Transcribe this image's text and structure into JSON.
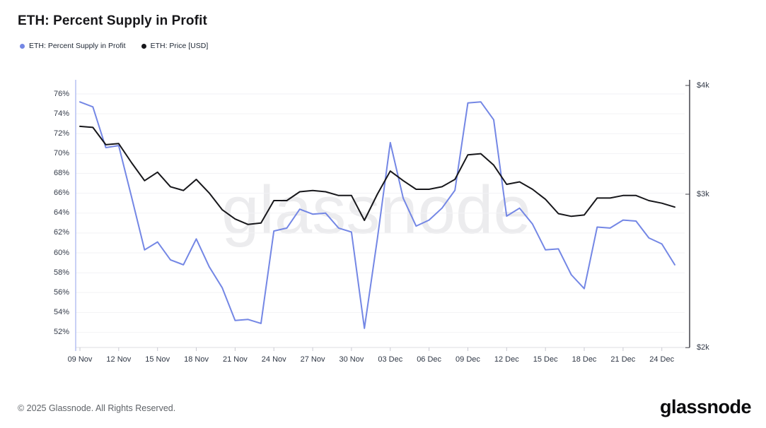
{
  "title": "ETH: Percent Supply in Profit",
  "legend": {
    "items": [
      {
        "label": "ETH: Percent Supply in Profit",
        "color": "#7487e5"
      },
      {
        "label": "ETH: Price [USD]",
        "color": "#17171b"
      }
    ]
  },
  "watermark": "glassnode",
  "footer": {
    "copyright": "© 2025 Glassnode. All Rights Reserved.",
    "brand": "glassnode"
  },
  "chart_data": {
    "type": "line",
    "x_dates": [
      "09 Nov",
      "10 Nov",
      "11 Nov",
      "12 Nov",
      "13 Nov",
      "14 Nov",
      "15 Nov",
      "16 Nov",
      "17 Nov",
      "18 Nov",
      "19 Nov",
      "20 Nov",
      "21 Nov",
      "22 Nov",
      "23 Nov",
      "24 Nov",
      "25 Nov",
      "26 Nov",
      "27 Nov",
      "28 Nov",
      "29 Nov",
      "30 Nov",
      "01 Dec",
      "02 Dec",
      "03 Dec",
      "04 Dec",
      "05 Dec",
      "06 Dec",
      "07 Dec",
      "08 Dec",
      "09 Dec",
      "10 Dec",
      "11 Dec",
      "12 Dec",
      "13 Dec",
      "14 Dec",
      "15 Dec",
      "16 Dec",
      "17 Dec",
      "18 Dec",
      "19 Dec",
      "20 Dec",
      "21 Dec",
      "22 Dec",
      "23 Dec",
      "24 Dec",
      "25 Dec"
    ],
    "x_tick_labels": [
      "09 Nov",
      "12 Nov",
      "15 Nov",
      "18 Nov",
      "21 Nov",
      "24 Nov",
      "27 Nov",
      "30 Nov",
      "03 Dec",
      "06 Dec",
      "09 Dec",
      "12 Dec",
      "15 Dec",
      "18 Dec",
      "21 Dec",
      "24 Dec"
    ],
    "left_axis": {
      "unit": "%",
      "tick_min": 52,
      "tick_max": 76,
      "tick_step": 2,
      "grid": true
    },
    "right_axis": {
      "scale": "log",
      "tick_labels": [
        "$4k",
        "$3k",
        "$2k"
      ],
      "tick_values_k": [
        4,
        3,
        2
      ]
    },
    "series": [
      {
        "name": "ETH: Percent Supply in Profit",
        "axis": "left",
        "unit": "%",
        "color": "#7487e5",
        "values": [
          75.2,
          74.7,
          70.6,
          70.8,
          65.6,
          60.3,
          61.1,
          59.3,
          58.8,
          61.4,
          58.6,
          56.5,
          53.2,
          53.3,
          52.9,
          62.2,
          62.5,
          64.4,
          63.9,
          64.0,
          62.5,
          62.1,
          52.4,
          61.4,
          71.1,
          65.5,
          62.7,
          63.3,
          64.5,
          66.3,
          75.1,
          75.2,
          73.4,
          63.7,
          64.5,
          62.9,
          60.3,
          60.4,
          57.8,
          56.4,
          62.6,
          62.5,
          63.3,
          63.2,
          61.5,
          60.9,
          58.8
        ]
      },
      {
        "name": "ETH: Price [USD]",
        "axis": "right",
        "unit": "USD (thousands)",
        "color": "#17171b",
        "values": [
          3.59,
          3.58,
          3.42,
          3.43,
          3.26,
          3.11,
          3.18,
          3.06,
          3.03,
          3.12,
          3.01,
          2.88,
          2.81,
          2.77,
          2.78,
          2.95,
          2.95,
          3.02,
          3.03,
          3.02,
          2.99,
          2.99,
          2.8,
          3.0,
          3.19,
          3.11,
          3.04,
          3.04,
          3.06,
          3.12,
          3.33,
          3.34,
          3.24,
          3.08,
          3.1,
          3.04,
          2.96,
          2.85,
          2.83,
          2.84,
          2.97,
          2.97,
          2.99,
          2.99,
          2.95,
          2.93,
          2.9
        ]
      }
    ]
  }
}
